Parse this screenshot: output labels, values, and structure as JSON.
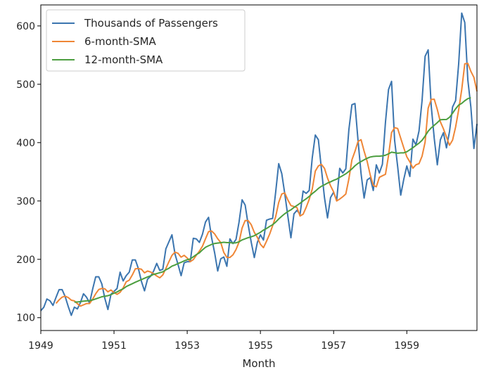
{
  "chart_data": {
    "type": "line",
    "title": "",
    "xlabel": "Month",
    "ylabel": "",
    "x_start": "1949-01",
    "x_end": "1960-12",
    "xlim": [
      "1949-01",
      "1960-12"
    ],
    "ylim": [
      78,
      636
    ],
    "xticks": [
      "1949",
      "1951",
      "1953",
      "1955",
      "1957",
      "1959"
    ],
    "yticks": [
      100,
      200,
      300,
      400,
      500,
      600
    ],
    "grid": false,
    "legend_position": "top-left",
    "series": [
      {
        "name": "Thousands of Passengers",
        "color": "#3b75af",
        "values": [
          112,
          118,
          132,
          129,
          121,
          135,
          148,
          148,
          136,
          119,
          104,
          118,
          115,
          126,
          141,
          135,
          125,
          149,
          170,
          170,
          158,
          133,
          114,
          140,
          145,
          150,
          178,
          163,
          172,
          178,
          199,
          199,
          184,
          162,
          146,
          166,
          171,
          180,
          193,
          181,
          183,
          218,
          230,
          242,
          209,
          191,
          172,
          194,
          196,
          196,
          236,
          235,
          229,
          243,
          264,
          272,
          237,
          211,
          180,
          201,
          204,
          188,
          235,
          227,
          234,
          264,
          302,
          293,
          259,
          229,
          203,
          229,
          242,
          233,
          267,
          269,
          270,
          315,
          364,
          347,
          312,
          274,
          237,
          278,
          284,
          277,
          317,
          313,
          318,
          374,
          413,
          405,
          355,
          306,
          271,
          306,
          315,
          301,
          356,
          348,
          355,
          422,
          465,
          467,
          404,
          347,
          305,
          336,
          340,
          318,
          362,
          348,
          363,
          435,
          491,
          505,
          404,
          359,
          310,
          337,
          360,
          342,
          406,
          396,
          420,
          472,
          548,
          559,
          463,
          407,
          362,
          405,
          417,
          391,
          419,
          461,
          472,
          535,
          622,
          606,
          508,
          461,
          390,
          432
        ]
      },
      {
        "name": "6-month-SMA",
        "color": "#ef8636",
        "values": [
          null,
          null,
          null,
          null,
          null,
          124.5,
          130.5,
          135.2,
          136.8,
          134.5,
          130.0,
          128.8,
          124.0,
          119.8,
          122.0,
          124.2,
          124.3,
          131.8,
          141.0,
          148.3,
          150.0,
          149.5,
          144.3,
          147.5,
          143.0,
          140.0,
          143.5,
          151.0,
          161.5,
          164.3,
          173.2,
          183.8,
          184.2,
          183.0,
          176.8,
          180.0,
          178.3,
          175.3,
          171.5,
          168.3,
          173.2,
          184.3,
          195.8,
          206.8,
          212.3,
          210.3,
          203.7,
          206.8,
          202.3,
          196.0,
          199.5,
          207.0,
          214.0,
          222.5,
          235.2,
          247.5,
          248.5,
          243.5,
          235.3,
          228.8,
          211.7,
          203.3,
          203.2,
          207.7,
          216.8,
          229.5,
          253.7,
          266.5,
          266.3,
          259.3,
          246.2,
          237.7,
          225.8,
          220.0,
          231.0,
          242.8,
          257.5,
          273.0,
          297.5,
          312.0,
          313.8,
          301.7,
          292.2,
          290.5,
          288.5,
          274.2,
          277.3,
          289.0,
          302.8,
          320.5,
          351.2,
          360.0,
          362.8,
          356.0,
          339.3,
          326.0,
          315.7,
          300.0,
          303.3,
          307.3,
          312.0,
          337.7,
          370.5,
          385.0,
          402.0,
          405.0,
          385.3,
          367.8,
          344.7,
          326.8,
          324.3,
          340.5,
          343.2,
          345.7,
          377.7,
          417.2,
          425.7,
          424.2,
          407.5,
          391.2,
          375.7,
          367.0,
          356.2,
          362.0,
          364.0,
          376.7,
          401.0,
          459.0,
          474.0,
          474.3,
          456.7,
          435.7,
          423.7,
          409.7,
          395.5,
          404.3,
          426.8,
          456.2,
          490.8,
          535.0,
          535.8,
          522.2,
          511.8,
          487.8
        ]
      },
      {
        "name": "12-month-SMA",
        "color": "#4c9e3f",
        "values": [
          null,
          null,
          null,
          null,
          null,
          null,
          null,
          null,
          null,
          null,
          null,
          126.7,
          126.9,
          127.6,
          128.3,
          128.8,
          129.2,
          130.4,
          132.2,
          134.0,
          135.8,
          136.8,
          137.6,
          139.5,
          142.0,
          144.0,
          147.1,
          149.4,
          153.3,
          155.8,
          158.2,
          160.8,
          163.0,
          165.3,
          167.6,
          169.8,
          171.8,
          174.3,
          175.5,
          177.0,
          178.6,
          182.0,
          184.7,
          188.3,
          190.3,
          192.8,
          194.9,
          197.2,
          199.3,
          200.7,
          204.3,
          208.1,
          211.2,
          216.2,
          220.7,
          223.2,
          225.5,
          227.2,
          227.9,
          228.5,
          229.2,
          228.6,
          228.6,
          227.9,
          228.3,
          230.1,
          233.3,
          235.2,
          237.1,
          238.6,
          240.5,
          243.4,
          246.3,
          250.1,
          252.8,
          256.3,
          259.3,
          263.8,
          269.1,
          273.8,
          278.2,
          281.9,
          284.8,
          288.9,
          292.4,
          296.1,
          300.1,
          303.7,
          307.8,
          312.6,
          316.7,
          321.5,
          325.2,
          327.8,
          330.7,
          332.8,
          335.4,
          337.4,
          340.6,
          343.5,
          346.6,
          350.6,
          355.0,
          360.3,
          364.4,
          367.6,
          370.6,
          373.2,
          375.3,
          376.3,
          376.8,
          376.8,
          377.3,
          378.4,
          380.8,
          383.7,
          382.8,
          381.9,
          382.4,
          382.5,
          384.3,
          387.8,
          391.3,
          395.4,
          399.1,
          404.0,
          411.3,
          419.6,
          425.3,
          429.8,
          434.3,
          439.3,
          439.6,
          439.7,
          443.4,
          450.3,
          458.0,
          464.4,
          467.3,
          471.8,
          475.3,
          477.0
        ]
      }
    ]
  }
}
